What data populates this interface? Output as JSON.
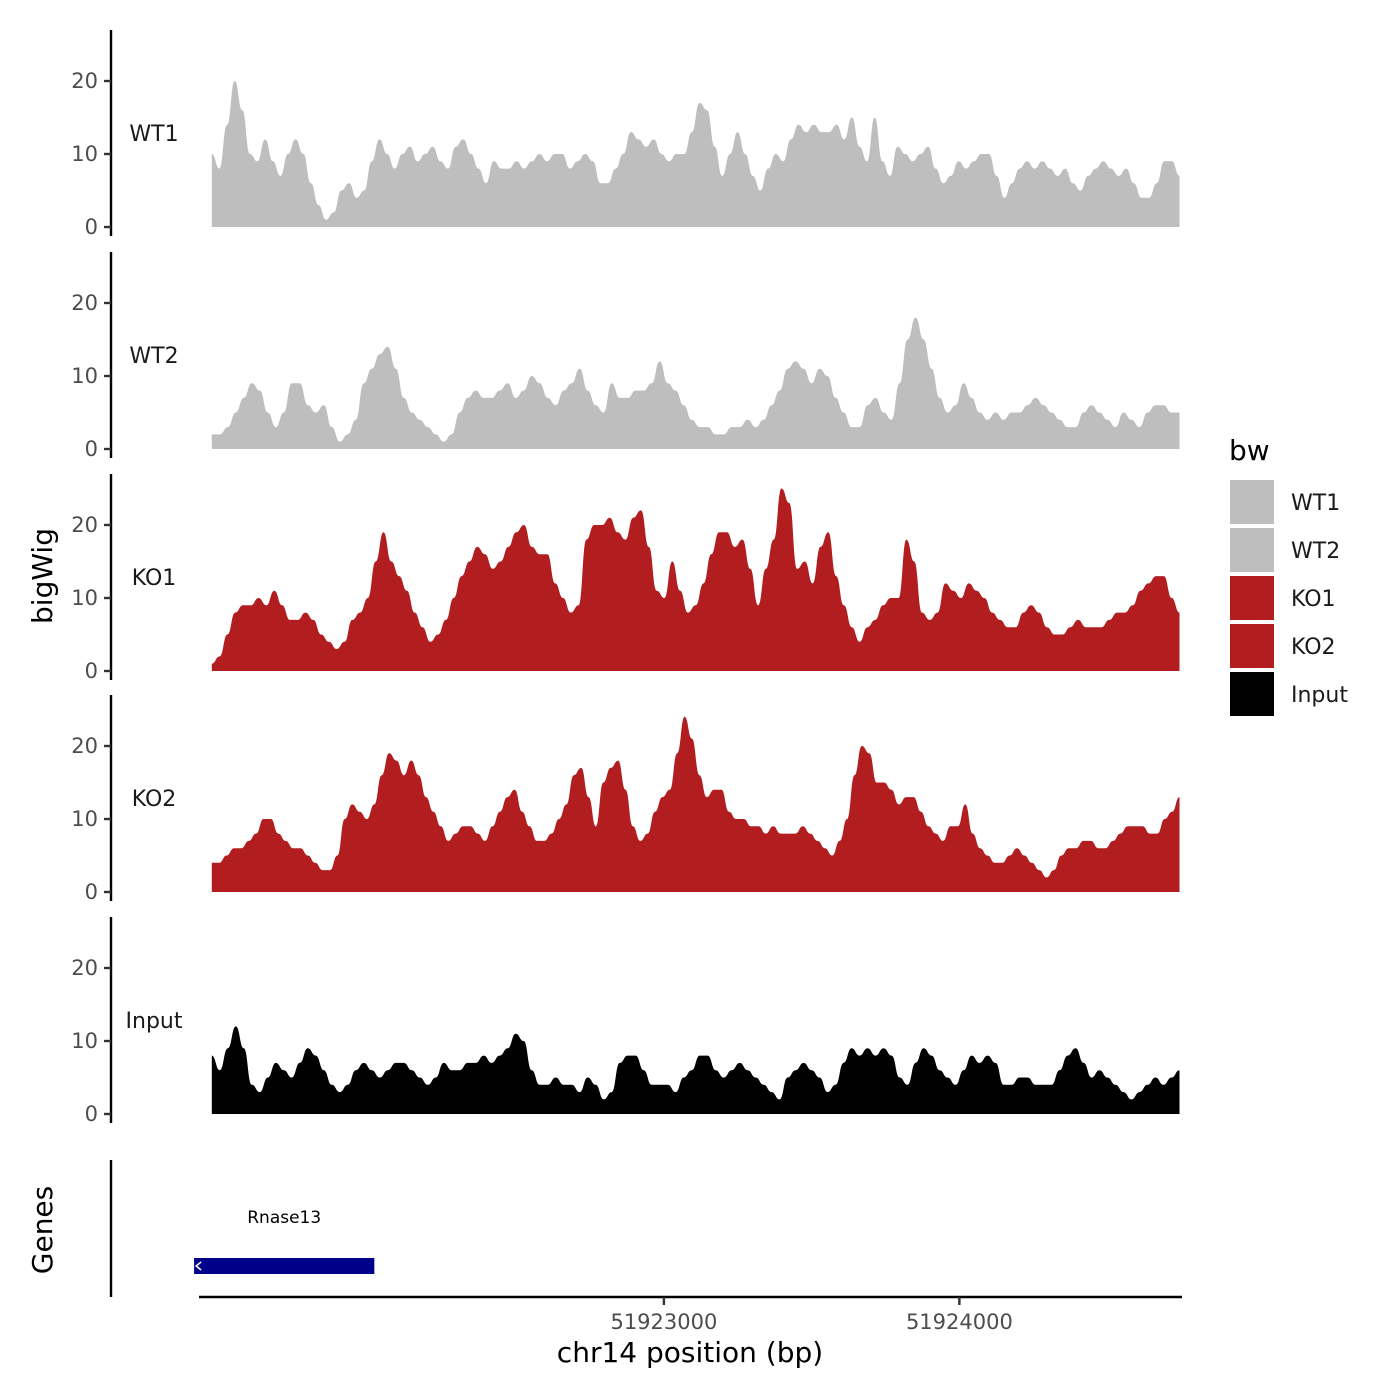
{
  "chart_data": {
    "type": "area",
    "x_label": "chr14 position (bp)",
    "y_label": "bigWig",
    "genes_panel_label": "Genes",
    "x_range": [
      51921430,
      51924750
    ],
    "x_ticks": [
      {
        "value": 51923000,
        "label": "51923000"
      },
      {
        "value": 51924000,
        "label": "51924000"
      }
    ],
    "y_range": [
      0,
      27
    ],
    "y_ticks": [
      {
        "value": 0,
        "label": "0"
      },
      {
        "value": 10,
        "label": "10"
      },
      {
        "value": 20,
        "label": "20"
      }
    ],
    "legend": {
      "title": "bw",
      "items": [
        {
          "label": "WT1",
          "color": "#bebebe"
        },
        {
          "label": "WT2",
          "color": "#bebebe"
        },
        {
          "label": "KO1",
          "color": "#b21e1f"
        },
        {
          "label": "KO2",
          "color": "#b21e1f"
        },
        {
          "label": "Input",
          "color": "#000000"
        }
      ]
    },
    "series": [
      {
        "name": "WT1",
        "color": "#bebebe",
        "x_start": 51921470,
        "x_end": 51924745,
        "values": [
          10,
          8,
          14,
          20,
          16,
          10,
          9,
          12,
          9,
          7,
          10,
          12,
          10,
          6,
          3,
          1,
          2,
          5,
          6,
          4,
          5,
          9,
          12,
          10,
          8,
          10,
          11,
          9,
          10,
          11,
          9,
          8,
          11,
          12,
          10,
          8,
          6,
          9,
          8,
          8,
          9,
          8,
          9,
          10,
          9,
          10,
          10,
          8,
          9,
          10,
          9,
          6,
          6,
          8,
          10,
          13,
          12,
          11,
          12,
          10,
          9,
          10,
          10,
          13,
          17,
          16,
          11,
          7,
          10,
          13,
          10,
          7,
          5,
          8,
          10,
          9,
          12,
          14,
          13,
          14,
          13,
          13,
          14,
          12,
          15,
          11,
          9,
          15,
          9,
          7,
          11,
          10,
          9,
          10,
          11,
          8,
          6,
          7,
          9,
          8,
          9,
          10,
          10,
          7,
          4,
          6,
          8,
          9,
          8,
          9,
          8,
          7,
          8,
          6,
          5,
          7,
          8,
          9,
          8,
          7,
          8,
          6,
          4,
          4,
          6,
          9,
          9,
          7
        ]
      },
      {
        "name": "WT2",
        "color": "#bebebe",
        "x_start": 51921470,
        "x_end": 51924745,
        "values": [
          2,
          2,
          3,
          5,
          7,
          9,
          8,
          5,
          3,
          5,
          9,
          9,
          6,
          5,
          6,
          3,
          1,
          2,
          4,
          9,
          11,
          13,
          14,
          11,
          7,
          5,
          4,
          3,
          2,
          1,
          2,
          5,
          7,
          8,
          7,
          7,
          8,
          9,
          7,
          8,
          10,
          9,
          7,
          6,
          8,
          9,
          11,
          8,
          6,
          5,
          9,
          7,
          7,
          8,
          8,
          9,
          12,
          9,
          8,
          6,
          4,
          3,
          3,
          2,
          2,
          3,
          3,
          4,
          3,
          4,
          6,
          8,
          11,
          12,
          11,
          9,
          11,
          10,
          7,
          5,
          3,
          3,
          6,
          7,
          5,
          4,
          9,
          15,
          18,
          15,
          11,
          7,
          5,
          6,
          9,
          7,
          5,
          4,
          5,
          4,
          5,
          5,
          6,
          7,
          6,
          5,
          4,
          3,
          3,
          5,
          6,
          5,
          4,
          3,
          5,
          4,
          3,
          5,
          6,
          6,
          5,
          5
        ]
      },
      {
        "name": "KO1",
        "color": "#b21e1f",
        "x_start": 51921470,
        "x_end": 51924745,
        "values": [
          1,
          2,
          5,
          8,
          9,
          9,
          10,
          9,
          11,
          9,
          7,
          7,
          8,
          7,
          5,
          4,
          3,
          4,
          7,
          8,
          10,
          15,
          19,
          15,
          13,
          11,
          8,
          6,
          4,
          5,
          7,
          10,
          13,
          15,
          17,
          16,
          14,
          15,
          17,
          19,
          20,
          17,
          16,
          16,
          12,
          10,
          8,
          9,
          18,
          20,
          20,
          21,
          19,
          18,
          21,
          22,
          17,
          11,
          10,
          15,
          11,
          8,
          9,
          12,
          16,
          19,
          19,
          17,
          18,
          14,
          9,
          14,
          18,
          25,
          23,
          14,
          15,
          12,
          17,
          19,
          13,
          9,
          6,
          4,
          6,
          7,
          9,
          10,
          10,
          18,
          15,
          8,
          7,
          8,
          12,
          11,
          10,
          12,
          11,
          10,
          8,
          7,
          6,
          6,
          8,
          9,
          8,
          6,
          5,
          5,
          6,
          7,
          6,
          6,
          6,
          7,
          8,
          8,
          9,
          11,
          12,
          13,
          13,
          10,
          8
        ]
      },
      {
        "name": "KO2",
        "color": "#b21e1f",
        "x_start": 51921470,
        "x_end": 51924745,
        "values": [
          4,
          4,
          5,
          6,
          6,
          7,
          8,
          10,
          10,
          8,
          7,
          6,
          6,
          5,
          4,
          3,
          3,
          5,
          10,
          12,
          11,
          10,
          12,
          16,
          19,
          18,
          16,
          18,
          16,
          13,
          11,
          9,
          7,
          8,
          9,
          9,
          8,
          7,
          9,
          11,
          13,
          14,
          11,
          9,
          7,
          7,
          8,
          10,
          12,
          16,
          17,
          13,
          9,
          15,
          17,
          18,
          14,
          9,
          7,
          8,
          11,
          13,
          14,
          19,
          24,
          21,
          16,
          13,
          14,
          14,
          11,
          10,
          10,
          9,
          9,
          8,
          9,
          8,
          8,
          8,
          9,
          8,
          7,
          6,
          5,
          7,
          10,
          16,
          20,
          19,
          15,
          15,
          14,
          12,
          13,
          13,
          11,
          9,
          8,
          7,
          9,
          9,
          12,
          8,
          6,
          5,
          4,
          4,
          5,
          6,
          5,
          4,
          3,
          2,
          3,
          5,
          6,
          6,
          7,
          7,
          6,
          6,
          7,
          8,
          9,
          9,
          9,
          8,
          8,
          10,
          11,
          13
        ]
      },
      {
        "name": "Input",
        "color": "#000000",
        "x_start": 51921470,
        "x_end": 51924745,
        "values": [
          8,
          6,
          9,
          12,
          9,
          4,
          3,
          5,
          7,
          6,
          5,
          7,
          9,
          8,
          6,
          4,
          3,
          4,
          6,
          7,
          6,
          5,
          6,
          7,
          7,
          6,
          5,
          4,
          5,
          7,
          6,
          6,
          7,
          7,
          8,
          7,
          8,
          9,
          11,
          10,
          6,
          4,
          4,
          5,
          4,
          4,
          3,
          5,
          4,
          2,
          3,
          7,
          8,
          8,
          6,
          4,
          4,
          4,
          3,
          5,
          6,
          8,
          8,
          6,
          5,
          6,
          7,
          6,
          5,
          4,
          3,
          2,
          5,
          6,
          7,
          6,
          5,
          3,
          4,
          7,
          9,
          8,
          9,
          8,
          9,
          8,
          5,
          4,
          7,
          9,
          8,
          6,
          5,
          4,
          6,
          8,
          7,
          8,
          7,
          4,
          4,
          5,
          5,
          4,
          4,
          4,
          6,
          8,
          9,
          7,
          5,
          6,
          5,
          4,
          3,
          2,
          3,
          4,
          5,
          4,
          5,
          6
        ]
      }
    ],
    "genes": [
      {
        "name": "Rnase13",
        "start": 51921410,
        "end": 51922020,
        "strand": "-",
        "color": "#00008b"
      }
    ]
  }
}
